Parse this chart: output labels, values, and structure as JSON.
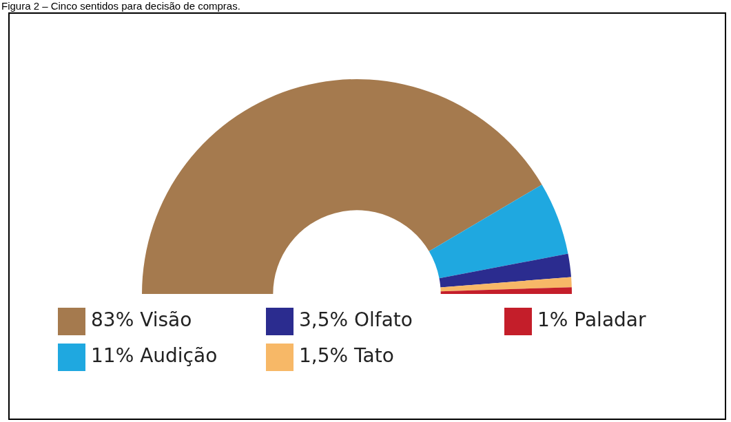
{
  "chart_data": {
    "type": "donut",
    "title": "Figura 2 – Cinco sentidos para decisão de compras.",
    "categories": [
      "Visão",
      "Audição",
      "Olfato",
      "Tato",
      "Paladar"
    ],
    "values": [
      83,
      11,
      3.5,
      1.5,
      1
    ],
    "colors": [
      "#a57a4e",
      "#1fa8e0",
      "#2b2c8f",
      "#f7b867",
      "#c41e2a"
    ],
    "value_labels": [
      "83%",
      "11%",
      "3,5%",
      "1,5%",
      "1%"
    ],
    "legend": "bottom"
  }
}
